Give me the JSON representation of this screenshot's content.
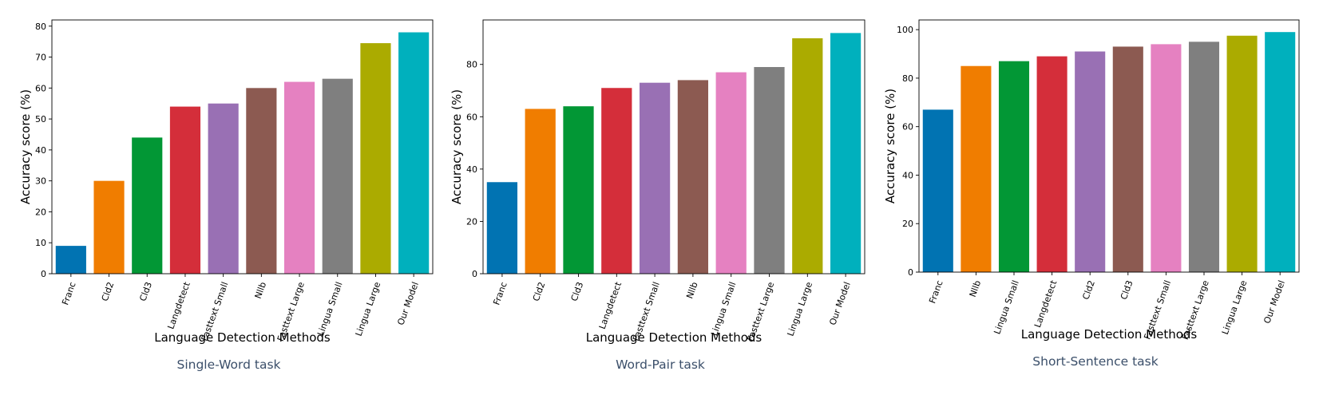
{
  "chart_data": [
    {
      "type": "bar",
      "title": "Single-Word task",
      "xlabel": "Language Detection Methods",
      "ylabel": "Accuracy score (%)",
      "ylim": [
        0,
        82
      ],
      "yticks": [
        0,
        10,
        20,
        30,
        40,
        50,
        60,
        70,
        80
      ],
      "categories": [
        "Franc",
        "Cld2",
        "Cld3",
        "Langdetect",
        "Fasttext Small",
        "Nllb",
        "Fasttext Large",
        "Lingua Small",
        "Lingua Large",
        "Our Model"
      ],
      "values": [
        9,
        30,
        44,
        54,
        55,
        60,
        62,
        63,
        74.5,
        78
      ],
      "colors": [
        "#0173b2",
        "#f07d00",
        "#029735",
        "#d42e3a",
        "#9970b4",
        "#8c5a51",
        "#e581c1",
        "#7f7f7f",
        "#abab00",
        "#00b0bd"
      ]
    },
    {
      "type": "bar",
      "title": "Word-Pair task",
      "xlabel": "Language Detection Methods",
      "ylabel": "Accuracy score (%)",
      "ylim": [
        0,
        97
      ],
      "yticks": [
        0,
        20,
        40,
        60,
        80
      ],
      "categories": [
        "Franc",
        "Cld2",
        "Cld3",
        "Langdetect",
        "Fasttext Small",
        "Nllb",
        "Lingua Small",
        "Fasttext Large",
        "Lingua Large",
        "Our Model"
      ],
      "values": [
        35,
        63,
        64,
        71,
        73,
        74,
        77,
        79,
        90,
        92
      ],
      "colors": [
        "#0173b2",
        "#f07d00",
        "#029735",
        "#d42e3a",
        "#9970b4",
        "#8c5a51",
        "#e581c1",
        "#7f7f7f",
        "#abab00",
        "#00b0bd"
      ]
    },
    {
      "type": "bar",
      "title": "Short-Sentence task",
      "xlabel": "Language Detection Methods",
      "ylabel": "Accuracy score (%)",
      "ylim": [
        0,
        104
      ],
      "yticks": [
        0,
        20,
        40,
        60,
        80,
        100
      ],
      "categories": [
        "Franc",
        "Nllb",
        "Lingua Small",
        "Langdetect",
        "Cld2",
        "Cld3",
        "Fasttext Small",
        "Fasttext Large",
        "Lingua Large",
        "Our Model"
      ],
      "values": [
        67,
        85,
        87,
        89,
        91,
        93,
        94,
        95,
        97.5,
        99
      ],
      "colors": [
        "#0173b2",
        "#f07d00",
        "#029735",
        "#d42e3a",
        "#9970b4",
        "#8c5a51",
        "#e581c1",
        "#7f7f7f",
        "#abab00",
        "#00b0bd"
      ]
    }
  ]
}
